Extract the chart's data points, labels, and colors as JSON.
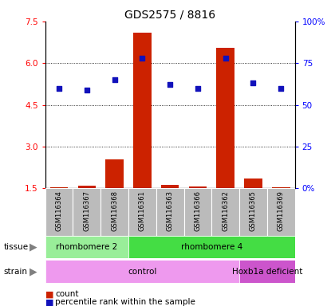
{
  "title": "GDS2575 / 8816",
  "samples": [
    "GSM116364",
    "GSM116367",
    "GSM116368",
    "GSM116361",
    "GSM116363",
    "GSM116366",
    "GSM116362",
    "GSM116365",
    "GSM116369"
  ],
  "counts": [
    1.52,
    1.58,
    2.55,
    7.1,
    1.62,
    1.57,
    6.55,
    1.85,
    1.52
  ],
  "percentiles": [
    60,
    59,
    65,
    78,
    62,
    60,
    78,
    63,
    60
  ],
  "ylim_left": [
    1.5,
    7.5
  ],
  "yticks_left": [
    1.5,
    3.0,
    4.5,
    6.0,
    7.5
  ],
  "yticks_right_vals": [
    0,
    25,
    50,
    75,
    100
  ],
  "yticks_right_labels": [
    "0%",
    "25",
    "50",
    "75",
    "100%"
  ],
  "grid_lines": [
    3.0,
    4.5,
    6.0
  ],
  "bar_color": "#cc2200",
  "dot_color": "#1111bb",
  "tissue_groups": [
    {
      "label": "rhombomere 2",
      "start": 0,
      "end": 3,
      "color": "#99ee99"
    },
    {
      "label": "rhombomere 4",
      "start": 3,
      "end": 9,
      "color": "#44dd44"
    }
  ],
  "strain_groups": [
    {
      "label": "control",
      "start": 0,
      "end": 7,
      "color": "#ee99ee"
    },
    {
      "label": "Hoxb1a deficient",
      "start": 7,
      "end": 9,
      "color": "#cc55cc"
    }
  ],
  "sample_bg_color": "#bbbbbb",
  "legend_count_color": "#cc2200",
  "legend_dot_color": "#1111bb",
  "fig_width": 4.2,
  "fig_height": 3.84,
  "dpi": 100
}
